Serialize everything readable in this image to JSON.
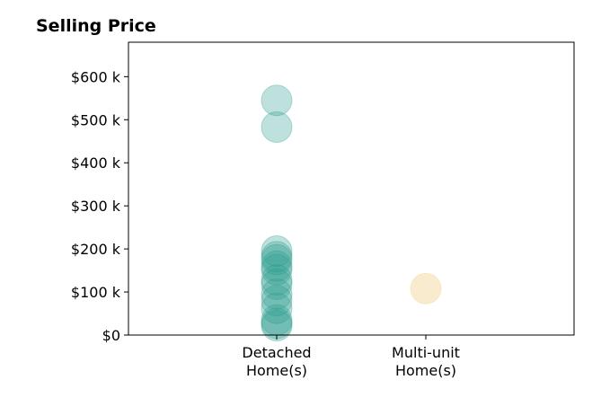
{
  "chart_data": {
    "type": "scatter",
    "title": "Selling Price",
    "xlabel": "",
    "ylabel": "",
    "categories": [
      [
        "Detached",
        "Home(s)"
      ],
      [
        "Multi-unit",
        "Home(s)"
      ]
    ],
    "ylim": [
      0,
      680000
    ],
    "yticks": [
      {
        "value": 0,
        "label": "$0"
      },
      {
        "value": 100000,
        "label": "$100 k"
      },
      {
        "value": 200000,
        "label": "$200 k"
      },
      {
        "value": 300000,
        "label": "$300 k"
      },
      {
        "value": 400000,
        "label": "$400 k"
      },
      {
        "value": 500000,
        "label": "$500 k"
      },
      {
        "value": 600000,
        "label": "$600 k"
      }
    ],
    "grid": false,
    "legend": "none",
    "series": [
      {
        "category": 0,
        "color": "#2a9d8f",
        "values": [
          545000,
          483000,
          195000,
          182000,
          175000,
          160000,
          152000,
          128000,
          118000,
          95000,
          80000,
          62000,
          35000,
          27000,
          22000
        ]
      },
      {
        "category": 1,
        "color": "#f4dba4",
        "values": [
          108000
        ]
      }
    ]
  }
}
